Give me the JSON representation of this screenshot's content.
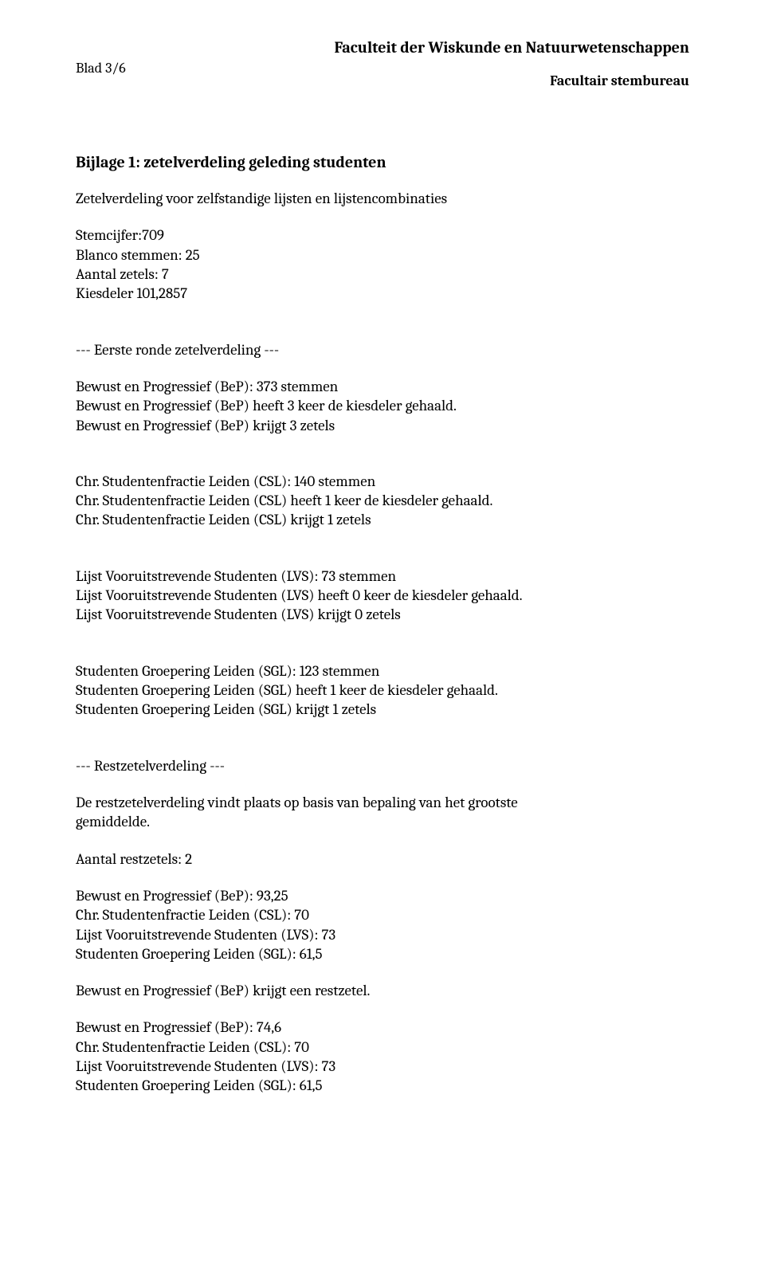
{
  "header": {
    "page_num": "Blad 3/6",
    "faculty": "Faculteit der Wiskunde en Natuurwetenschappen",
    "bureau": "Facultair stembureau"
  },
  "title": "Bijlage 1: zetelverdeling geleding studenten",
  "intro": {
    "subtitle": "Zetelverdeling voor zelfstandige lijsten en lijstencombinaties"
  },
  "stats": {
    "stemcijfer": "Stemcijfer:709",
    "blanco": "Blanco stemmen: 25",
    "zetels": "Aantal zetels: 7",
    "kiesdeler": "Kiesdeler 101,2857"
  },
  "round1_heading": "--- Eerste ronde zetelverdeling ---",
  "bep": {
    "l1": "Bewust en Progressief (BeP): 373 stemmen",
    "l2": "Bewust en Progressief (BeP) heeft 3 keer de kiesdeler gehaald.",
    "l3": "Bewust en Progressief (BeP) krijgt 3 zetels"
  },
  "csl": {
    "l1": "Chr. Studentenfractie Leiden (CSL): 140 stemmen",
    "l2": "Chr. Studentenfractie Leiden (CSL) heeft 1 keer de kiesdeler gehaald.",
    "l3": "Chr. Studentenfractie Leiden (CSL) krijgt 1 zetels"
  },
  "lvs": {
    "l1": "Lijst Vooruitstrevende Studenten (LVS): 73 stemmen",
    "l2": "Lijst Vooruitstrevende Studenten (LVS) heeft 0 keer de kiesdeler gehaald.",
    "l3": "Lijst Vooruitstrevende Studenten (LVS) krijgt 0 zetels"
  },
  "sgl": {
    "l1": "Studenten Groepering Leiden (SGL): 123 stemmen",
    "l2": "Studenten Groepering Leiden (SGL) heeft 1 keer de kiesdeler gehaald.",
    "l3": "Studenten Groepering Leiden (SGL) krijgt 1 zetels"
  },
  "rest_heading": "--- Restzetelverdeling ---",
  "rest_desc": {
    "l1": "De restzetelverdeling vindt plaats op basis van bepaling van het grootste",
    "l2": "gemiddelde."
  },
  "rest_count": "Aantal restzetels: 2",
  "rest_block1": {
    "l1": "Bewust en Progressief (BeP): 93,25",
    "l2": "Chr. Studentenfractie Leiden (CSL): 70",
    "l3": "Lijst Vooruitstrevende Studenten (LVS): 73",
    "l4": "Studenten Groepering Leiden (SGL): 61,5"
  },
  "rest_award1": "Bewust en Progressief (BeP) krijgt een restzetel.",
  "rest_block2": {
    "l1": "Bewust en Progressief (BeP): 74,6",
    "l2": "Chr. Studentenfractie Leiden (CSL): 70",
    "l3": "Lijst Vooruitstrevende Studenten (LVS): 73",
    "l4": "Studenten Groepering Leiden (SGL): 61,5"
  }
}
